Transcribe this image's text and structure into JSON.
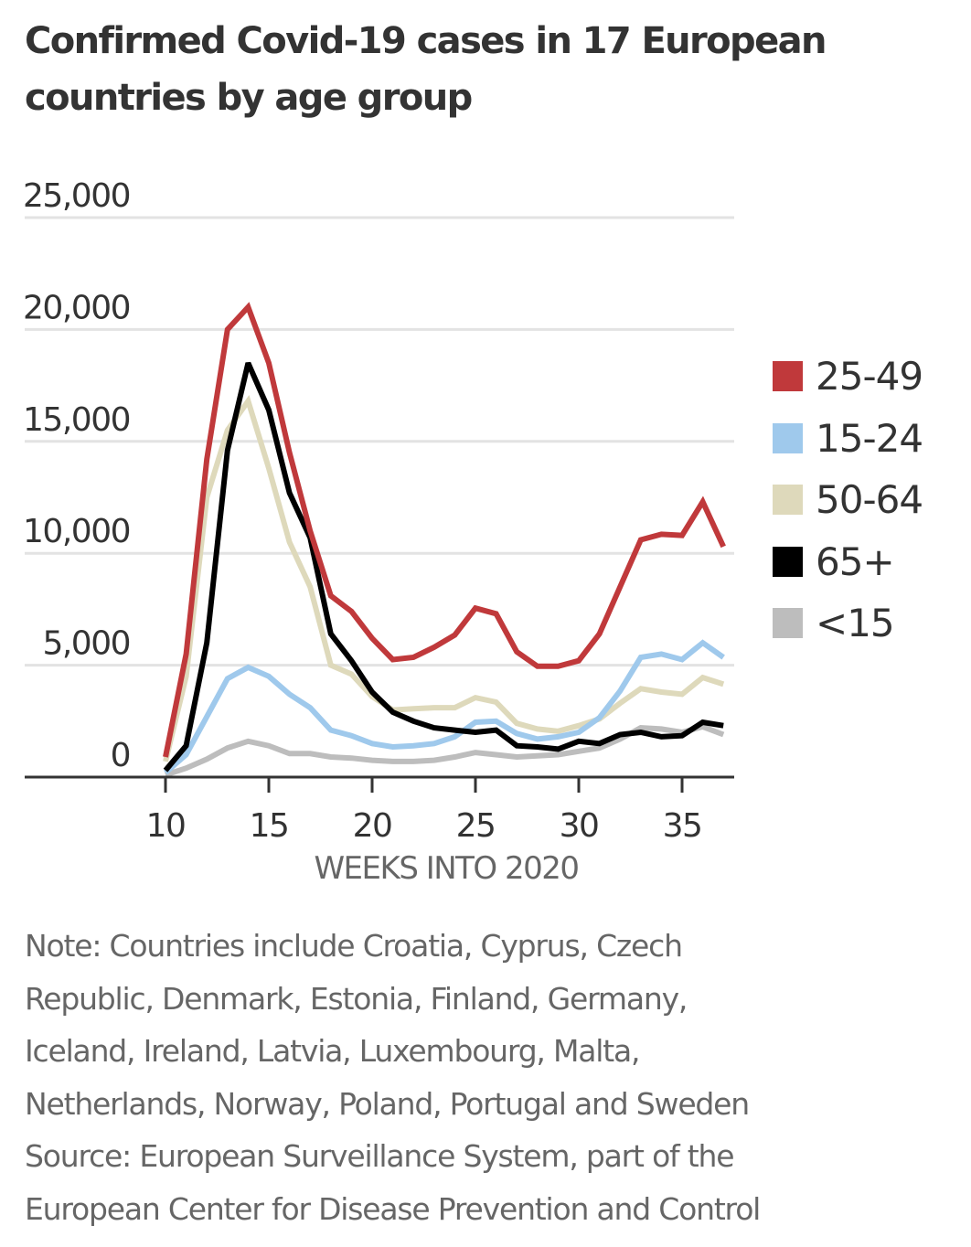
{
  "title_lines": [
    "Confirmed Covid-19 cases in 17 European",
    "countries by age group"
  ],
  "notes": {
    "lines": [
      "Note: Countries include Croatia, Cyprus, Czech",
      "Republic, Denmark, Estonia, Finland, Germany,",
      "Iceland, Ireland, Latvia, Luxembourg, Malta,",
      "Netherlands, Norway, Poland, Portugal and Sweden",
      "Source: European Surveillance System, part of the",
      "European Center for Disease Prevention and Control"
    ]
  },
  "legend": [
    {
      "label": "25-49",
      "color": "#c0393b"
    },
    {
      "label": "15-24",
      "color": "#9fc9ec"
    },
    {
      "label": "50-64",
      "color": "#ded9bb"
    },
    {
      "label": "65+",
      "color": "#000000"
    },
    {
      "label": "<15",
      "color": "#bdbdbd"
    }
  ],
  "chart_data": {
    "type": "line",
    "title": "Confirmed Covid-19 cases in 17 European countries by age group",
    "xlabel": "WEEKS INTO 2020",
    "ylabel": "",
    "x": [
      10,
      11,
      12,
      13,
      14,
      15,
      16,
      17,
      18,
      19,
      20,
      21,
      22,
      23,
      24,
      25,
      26,
      27,
      28,
      29,
      30,
      31,
      32,
      33,
      34,
      35,
      36,
      37
    ],
    "xlim": [
      10,
      37
    ],
    "ylim": [
      0,
      25000
    ],
    "xticks": [
      10,
      15,
      20,
      25,
      30,
      35
    ],
    "xtick_labels": [
      "10",
      "15",
      "20",
      "25",
      "30",
      "35"
    ],
    "yticks": [
      0,
      5000,
      10000,
      15000,
      20000,
      25000
    ],
    "ytick_labels": [
      "0",
      "5,000",
      "10,000",
      "15,000",
      "20,000",
      "25,000"
    ],
    "grid": true,
    "legend_position": "right",
    "series": [
      {
        "name": "<15",
        "color": "#bdbdbd",
        "values": [
          100,
          400,
          800,
          1300,
          1600,
          1400,
          1050,
          1050,
          900,
          850,
          750,
          700,
          700,
          750,
          900,
          1100,
          1000,
          900,
          950,
          1000,
          1150,
          1300,
          1700,
          2200,
          2150,
          2000,
          2250,
          1900
        ]
      },
      {
        "name": "50-64",
        "color": "#ded9bb",
        "values": [
          700,
          4500,
          12500,
          15500,
          16800,
          13800,
          10500,
          8500,
          5000,
          4600,
          3600,
          3000,
          3050,
          3100,
          3100,
          3550,
          3350,
          2400,
          2150,
          2050,
          2300,
          2600,
          3300,
          3950,
          3800,
          3700,
          4450,
          4150
        ]
      },
      {
        "name": "15-24",
        "color": "#9fc9ec",
        "values": [
          200,
          1000,
          2700,
          4400,
          4900,
          4500,
          3700,
          3100,
          2100,
          1850,
          1500,
          1350,
          1400,
          1500,
          1800,
          2450,
          2500,
          1950,
          1700,
          1800,
          2000,
          2650,
          3850,
          5350,
          5500,
          5250,
          6000,
          5350
        ]
      },
      {
        "name": "65+",
        "color": "#000000",
        "values": [
          300,
          1400,
          6000,
          14600,
          18500,
          16400,
          12700,
          10700,
          6400,
          5200,
          3800,
          2900,
          2500,
          2200,
          2100,
          2000,
          2100,
          1400,
          1350,
          1250,
          1600,
          1500,
          1900,
          2000,
          1800,
          1850,
          2450,
          2300
        ]
      },
      {
        "name": "25-49",
        "color": "#c0393b",
        "values": [
          900,
          5500,
          14200,
          20000,
          21000,
          18500,
          14500,
          11000,
          8100,
          7400,
          6200,
          5250,
          5350,
          5800,
          6350,
          7550,
          7300,
          5600,
          4950,
          4950,
          5200,
          6400,
          8500,
          10600,
          10850,
          10800,
          12300,
          10300
        ]
      }
    ]
  }
}
